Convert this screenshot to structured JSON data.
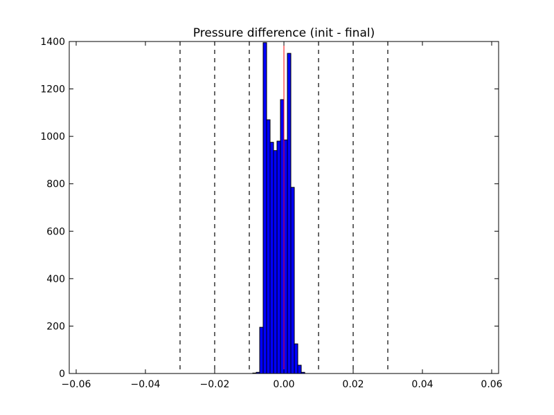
{
  "chart_data": {
    "type": "bar",
    "title": "Pressure difference (init - final)",
    "xlabel": "",
    "ylabel": "",
    "xlim": [
      -0.062,
      0.062
    ],
    "ylim": [
      0,
      1400
    ],
    "xticks": [
      -0.06,
      -0.04,
      -0.02,
      0.0,
      0.02,
      0.04,
      0.06
    ],
    "xtick_labels": [
      "−0.06",
      "−0.04",
      "−0.02",
      "0.00",
      "0.02",
      "0.04",
      "0.06"
    ],
    "yticks": [
      0,
      200,
      400,
      600,
      800,
      1000,
      1200,
      1400
    ],
    "ytick_labels": [
      "0",
      "200",
      "400",
      "600",
      "800",
      "1000",
      "1200",
      "1400"
    ],
    "grid": false,
    "bin_width": 0.001,
    "bins": [
      {
        "x0": -0.009,
        "count": 2
      },
      {
        "x0": -0.008,
        "count": 5
      },
      {
        "x0": -0.007,
        "count": 195
      },
      {
        "x0": -0.006,
        "count": 1395
      },
      {
        "x0": -0.005,
        "count": 1070
      },
      {
        "x0": -0.004,
        "count": 975
      },
      {
        "x0": -0.003,
        "count": 940
      },
      {
        "x0": -0.002,
        "count": 980
      },
      {
        "x0": -0.001,
        "count": 1155
      },
      {
        "x0": 0.0,
        "count": 985
      },
      {
        "x0": 0.001,
        "count": 1350
      },
      {
        "x0": 0.002,
        "count": 785
      },
      {
        "x0": 0.003,
        "count": 125
      },
      {
        "x0": 0.004,
        "count": 35
      },
      {
        "x0": 0.005,
        "count": 5
      }
    ],
    "bar_color": "#0000ff",
    "vlines_dashed": [
      -0.03,
      -0.02,
      -0.01,
      0.01,
      0.02,
      0.03
    ],
    "vline_solid": 0.0,
    "vline_solid_color": "#ff0000"
  }
}
